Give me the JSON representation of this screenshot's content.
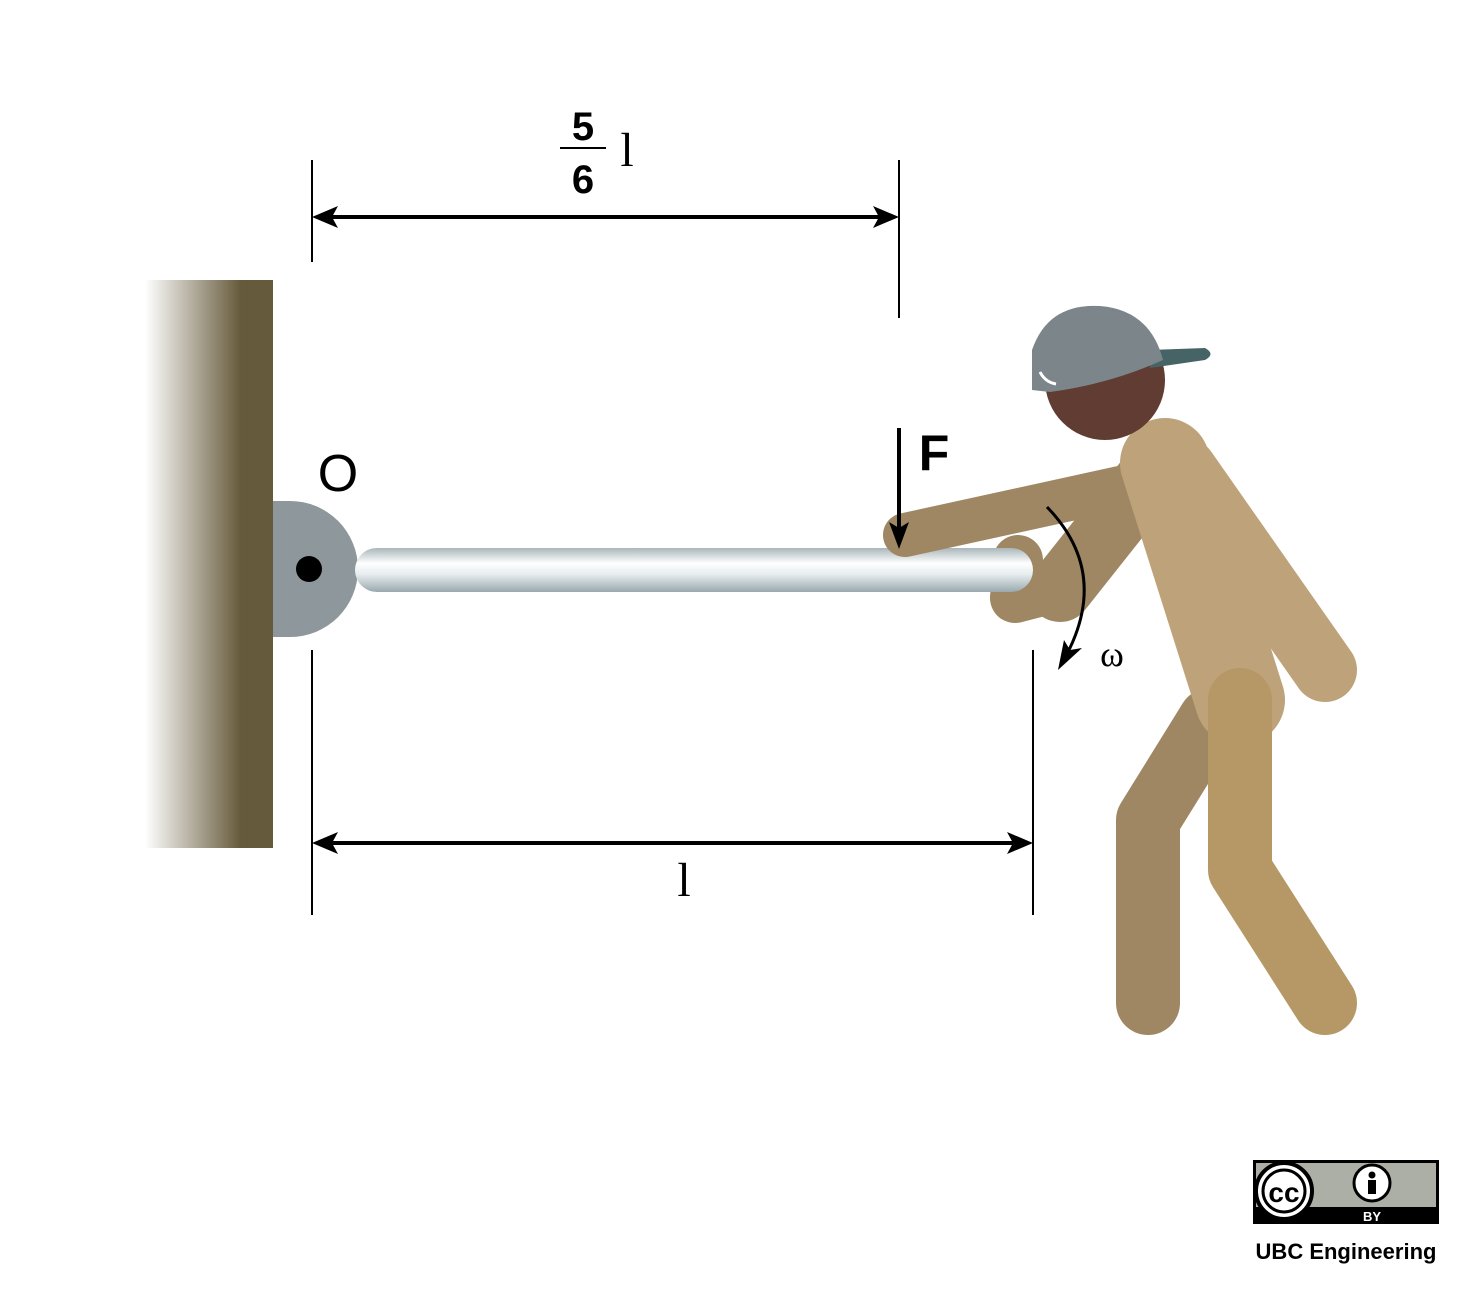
{
  "labels": {
    "pivot": "O",
    "force": "F",
    "omega": "ω",
    "length": "l",
    "partial_numerator": "5",
    "partial_denominator": "6",
    "partial_var": "l"
  },
  "license": {
    "cc_icon": "cc-icon",
    "by_icon": "attribution-icon",
    "by_text": "BY",
    "credit": "UBC Engineering"
  },
  "colors": {
    "wall_dark": "#655a3b",
    "pivot_gray": "#8e979b",
    "rod_light": "#e9eeef",
    "rod_dark": "#a6b3b8",
    "skin_back": "#9e8762",
    "skin_front": "#bea37a",
    "leg_front": "#b59866",
    "head": "#603c33",
    "cap": "#7b858a",
    "cap_brim": "#466466",
    "badge_gray": "#abafa6"
  }
}
